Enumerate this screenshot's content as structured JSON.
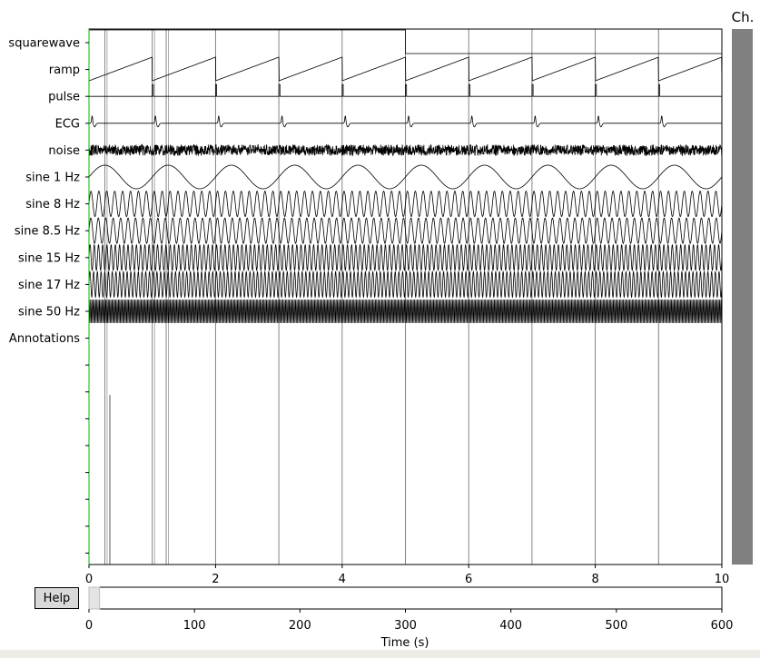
{
  "window": {
    "bottom_bar_color": "#efebe7"
  },
  "channel_scrollbar": {
    "title": "Ch.",
    "color": "#808080"
  },
  "help_button": {
    "label": "Help"
  },
  "colors": {
    "trace": "#000000",
    "green_marker": "#00bb00",
    "annotation_line": "#7a7a7a",
    "button_bg": "#d9d9d9",
    "scrollbar": "#808080"
  },
  "main_axis": {
    "channel_labels": [
      "squarewave",
      "ramp",
      "pulse",
      "ECG",
      "noise",
      "sine 1 Hz",
      "sine 8 Hz",
      "sine 8.5 Hz",
      "sine 15 Hz",
      "sine 17 Hz",
      "sine 50 Hz",
      "Annotations"
    ],
    "x_ticks": [
      0,
      2,
      4,
      6,
      8,
      10
    ],
    "xlim": [
      0,
      10
    ],
    "annotation_onsets": [
      0.25,
      1.0,
      1.22,
      2.0,
      3.0,
      4.0,
      5.0,
      6.0,
      7.0,
      8.0,
      9.0
    ],
    "squarewave_switch_time": 5.0,
    "ramp_period": 1.0,
    "pulse_times": [
      1,
      2,
      3,
      4,
      5,
      6,
      7,
      8,
      9
    ],
    "ecg_peak_times": [
      0.05,
      1.05,
      2.05,
      3.05,
      4.05,
      5.05,
      6.05,
      7.05,
      8.05,
      9.05
    ],
    "sine_frequencies": [
      1,
      8,
      8.5,
      15,
      17,
      50
    ],
    "short_marker_time": 0.33
  },
  "overview_axis": {
    "x_ticks": [
      0,
      100,
      200,
      300,
      400,
      500,
      600
    ],
    "xlim": [
      0,
      600
    ],
    "view_window": [
      0,
      10
    ],
    "xlabel": "Time (s)"
  }
}
